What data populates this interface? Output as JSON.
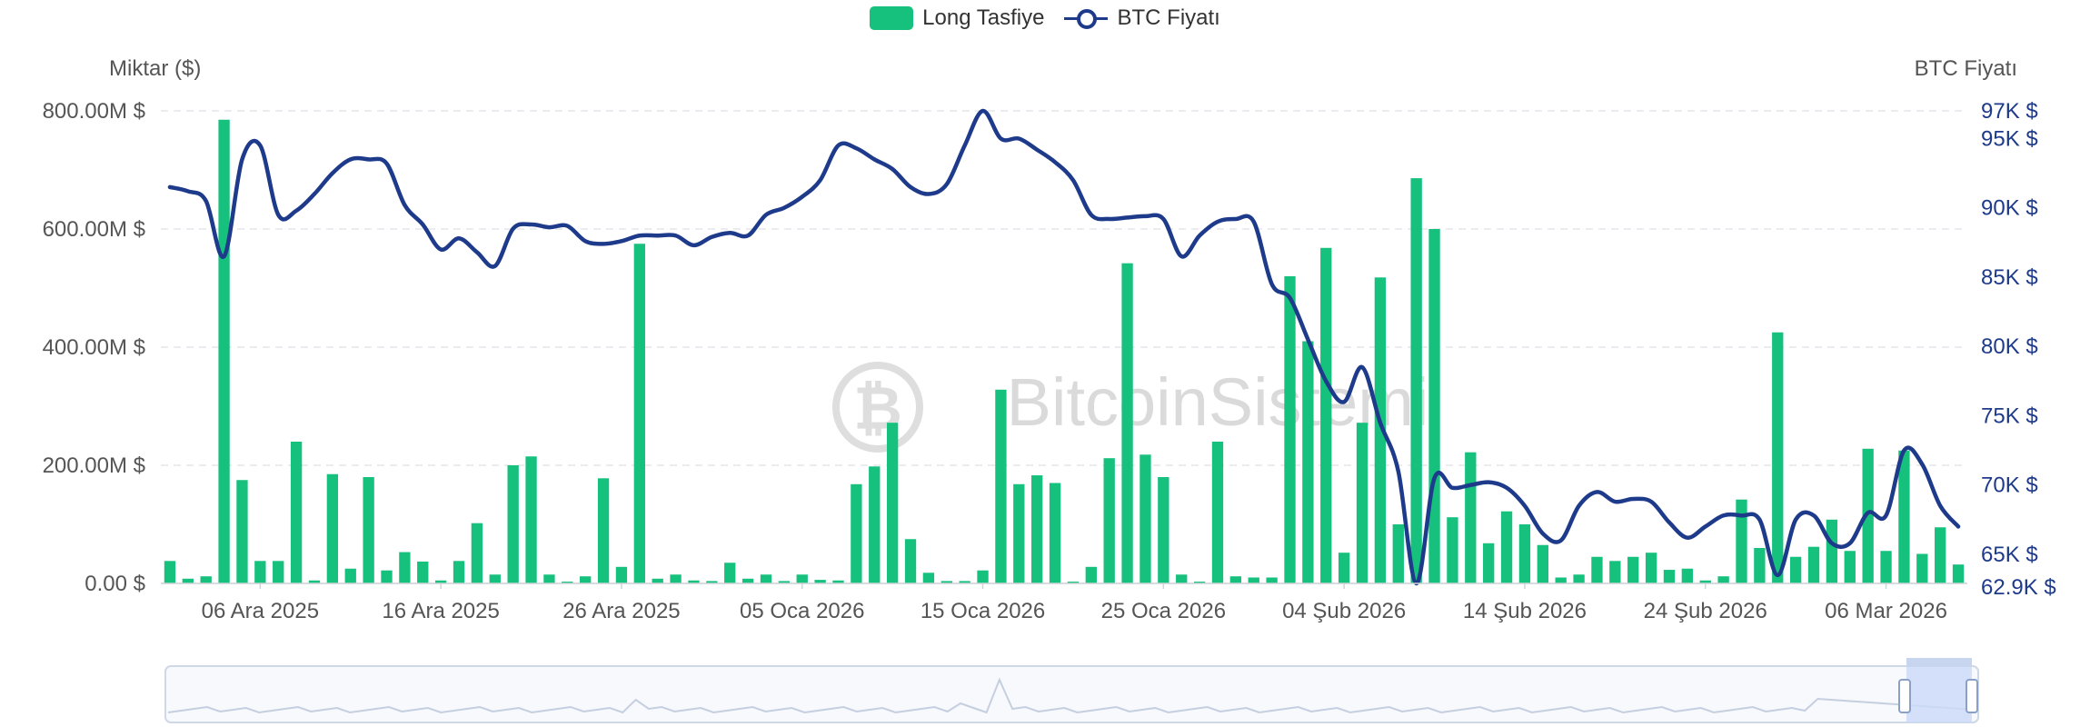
{
  "legend": {
    "bar_label": "Long Tasfiye",
    "line_label": "BTC Fiyatı"
  },
  "axes": {
    "left_title": "Miktar ($)",
    "right_title": "BTC Fiyatı",
    "left_ticks": [
      "0.00 $",
      "200.00M $",
      "400.00M $",
      "600.00M $",
      "800.00M $"
    ],
    "right_ticks": [
      "62.9K $",
      "65K $",
      "70K $",
      "75K $",
      "80K $",
      "85K $",
      "90K $",
      "95K $",
      "97K $"
    ]
  },
  "watermark": "BitcoinSistemi",
  "colors": {
    "bar": "#16c07d",
    "line": "#1e3a8a",
    "grid": "#e3e6ea",
    "axis_text_left": "#555555",
    "axis_text_right": "#1e3a8a"
  },
  "chart_data": {
    "type": "bar",
    "x_tick_labels": [
      "06 Ara 2025",
      "16 Ara 2025",
      "26 Ara 2025",
      "05 Oca 2026",
      "15 Oca 2026",
      "25 Oca 2026",
      "04 Şub 2026",
      "14 Şub 2026",
      "24 Şub 2026",
      "06 Mar 2026"
    ],
    "x_tick_indices": [
      5,
      15,
      25,
      35,
      45,
      55,
      65,
      75,
      85,
      95
    ],
    "left_ylim": [
      0,
      800
    ],
    "left_unit": "M $",
    "right_ylim": [
      62.9,
      97
    ],
    "right_unit": "K $",
    "grid": true,
    "legend_position": "top-center",
    "series": [
      {
        "name": "Long Tasfiye",
        "type": "bar",
        "axis": "left",
        "values": [
          38,
          8,
          12,
          785,
          175,
          38,
          38,
          240,
          5,
          185,
          25,
          180,
          22,
          53,
          37,
          5,
          38,
          102,
          15,
          200,
          215,
          15,
          3,
          12,
          178,
          28,
          575,
          8,
          15,
          5,
          4,
          35,
          8,
          15,
          4,
          15,
          6,
          5,
          168,
          198,
          272,
          75,
          18,
          4,
          4,
          22,
          328,
          168,
          183,
          170,
          3,
          28,
          212,
          542,
          218,
          180,
          15,
          3,
          240,
          12,
          10,
          10,
          520,
          410,
          568,
          52,
          272,
          518,
          100,
          686,
          600,
          112,
          222,
          68,
          122,
          100,
          65,
          10,
          15,
          45,
          38,
          45,
          52,
          23,
          25,
          5,
          12,
          142,
          60,
          425,
          45,
          62,
          108,
          55,
          228,
          55,
          225,
          50,
          95,
          32
        ]
      },
      {
        "name": "BTC Fiyatı",
        "type": "line",
        "axis": "right",
        "values": [
          91.5,
          91.2,
          90.5,
          86.5,
          93.5,
          94.5,
          89.5,
          89.8,
          91.0,
          92.5,
          93.5,
          93.5,
          93.2,
          90.2,
          88.8,
          87.0,
          87.8,
          86.8,
          85.8,
          88.5,
          88.8,
          88.6,
          88.7,
          87.6,
          87.4,
          87.6,
          88.0,
          88.0,
          88.0,
          87.3,
          87.9,
          88.2,
          88.0,
          89.5,
          90.0,
          90.8,
          92.0,
          94.5,
          94.3,
          93.5,
          92.8,
          91.5,
          91.0,
          91.7,
          94.5,
          97.0,
          95.0,
          95.0,
          94.2,
          93.3,
          92.0,
          89.5,
          89.2,
          89.3,
          89.4,
          89.2,
          86.5,
          88.0,
          89.0,
          89.2,
          89.0,
          84.5,
          83.5,
          80.5,
          77.5,
          76.0,
          78.5,
          74.5,
          71.0,
          62.9,
          70.5,
          69.8,
          70.0,
          70.2,
          69.8,
          68.5,
          66.5,
          66.0,
          68.5,
          69.5,
          68.8,
          69.0,
          68.8,
          67.3,
          66.2,
          67.0,
          67.8,
          67.8,
          67.5,
          63.5,
          67.5,
          67.8,
          65.8,
          65.8,
          68.0,
          67.8,
          72.5,
          71.5,
          68.5,
          67.0
        ]
      }
    ]
  }
}
